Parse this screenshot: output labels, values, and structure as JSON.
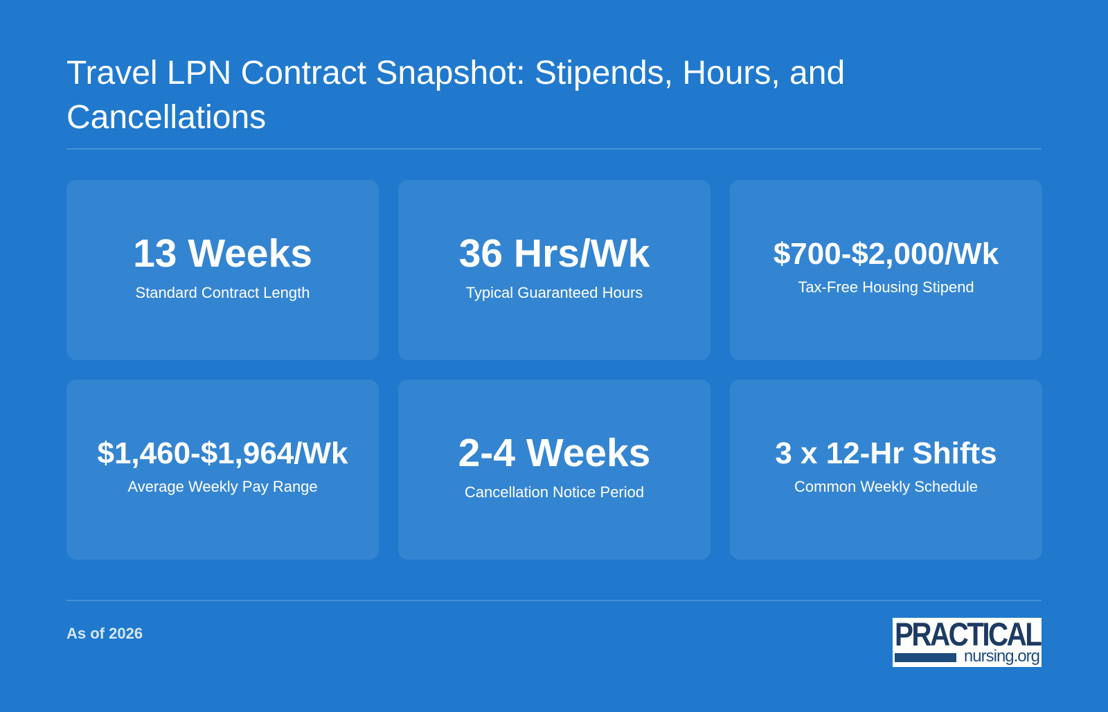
{
  "title": "Travel LPN Contract Snapshot: Stipends, Hours, and Cancellations",
  "cards": [
    {
      "value": "13 Weeks",
      "label": "Standard Contract Length"
    },
    {
      "value": "36 Hrs/Wk",
      "label": "Typical Guaranteed Hours"
    },
    {
      "value": "$700-$2,000/Wk",
      "label": "Tax-Free Housing Stipend"
    },
    {
      "value": "$1,460-$1,964/Wk",
      "label": "Average Weekly Pay Range"
    },
    {
      "value": "2-4 Weeks",
      "label": "Cancellation Notice Period"
    },
    {
      "value": "3 x 12-Hr Shifts",
      "label": "Common Weekly Schedule"
    }
  ],
  "footer": {
    "note": "As of 2026"
  },
  "logo": {
    "top": "PRACTICAL",
    "bottom": "nursing.org"
  },
  "colors": {
    "background": "#2079cd",
    "card": "#3584d2",
    "logo_text": "#1d3b62",
    "logo_accent": "#1d4c7d"
  }
}
